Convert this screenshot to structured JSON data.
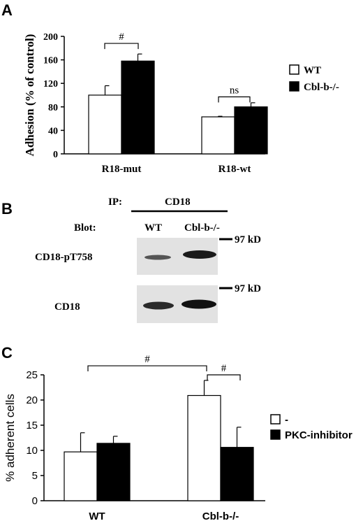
{
  "panels": {
    "a_letter": "A",
    "b_letter": "B",
    "c_letter": "C"
  },
  "chart_data": [
    {
      "type": "bar",
      "panel": "A",
      "categories": [
        "R18-mut",
        "R18-wt"
      ],
      "series": [
        {
          "name": "WT",
          "values": [
            100,
            63
          ],
          "errors": [
            16,
            1
          ],
          "color": "#ffffff"
        },
        {
          "name": "Cbl-b-/-",
          "values": [
            158,
            80
          ],
          "errors": [
            12,
            7
          ],
          "color": "#000000"
        }
      ],
      "ylabel": "Adhesion (% of control)",
      "yticks": [
        "0",
        "40",
        "80",
        "120",
        "160",
        "200"
      ],
      "ylim": [
        0,
        200
      ],
      "significance": [
        "#",
        "ns"
      ],
      "legend_position": "right"
    },
    {
      "type": "bar",
      "panel": "C",
      "categories": [
        "WT",
        "Cbl-b-/-"
      ],
      "series": [
        {
          "name": "-",
          "values": [
            9.7,
            20.9
          ],
          "errors": [
            3.8,
            3.0
          ],
          "color": "#ffffff"
        },
        {
          "name": "PKC-inhibitor",
          "values": [
            11.4,
            10.6
          ],
          "errors": [
            1.4,
            4.0
          ],
          "color": "#000000"
        }
      ],
      "ylabel": "% adherent cells",
      "yticks": [
        "0",
        "5",
        "10",
        "15",
        "20",
        "25"
      ],
      "ylim": [
        0,
        25
      ],
      "significance": [
        "#",
        "#"
      ],
      "legend_position": "right"
    }
  ],
  "blot": {
    "ip_label": "IP:",
    "ip_target": "CD18",
    "blot_label": "Blot:",
    "lane_wt": "WT",
    "lane_ko": "Cbl-b-/-",
    "row1_label": "CD18-pT758",
    "row2_label": "CD18",
    "marker1": "97 kD",
    "marker2": "97 kD"
  }
}
